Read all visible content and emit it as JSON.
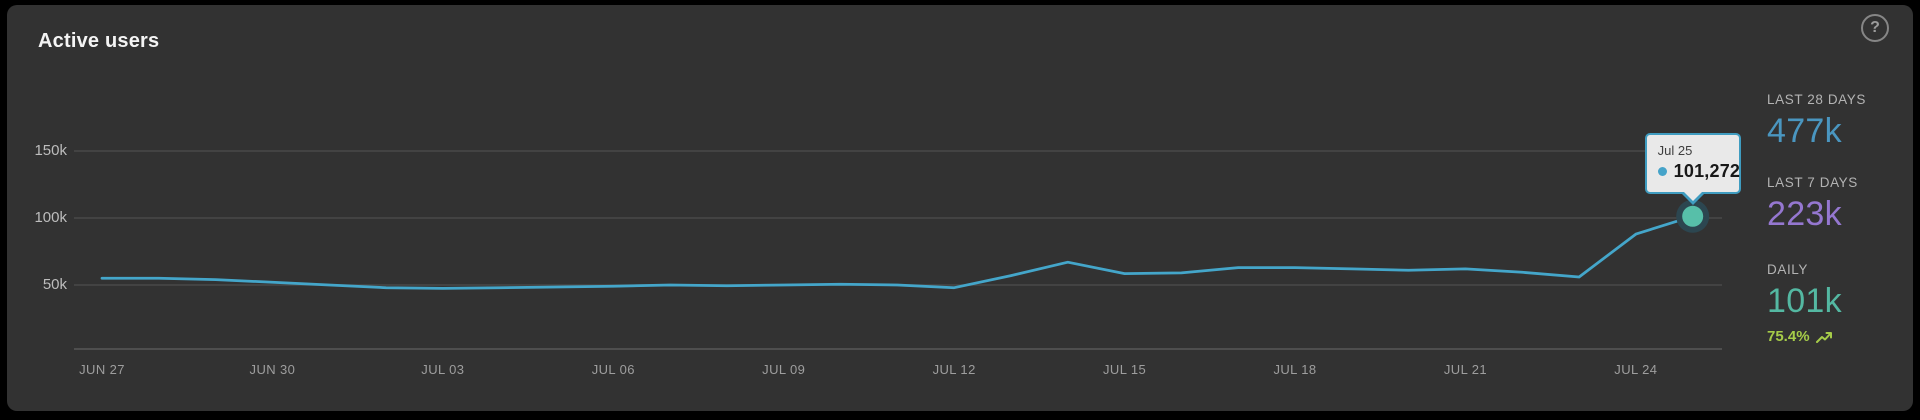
{
  "header": {
    "title": "Active users",
    "help_label": "?"
  },
  "chart_data": {
    "type": "line",
    "title": "Active users",
    "x": [
      "Jun 27",
      "Jun 28",
      "Jun 29",
      "Jun 30",
      "Jul 01",
      "Jul 02",
      "Jul 03",
      "Jul 04",
      "Jul 05",
      "Jul 06",
      "Jul 07",
      "Jul 08",
      "Jul 09",
      "Jul 10",
      "Jul 11",
      "Jul 12",
      "Jul 13",
      "Jul 14",
      "Jul 15",
      "Jul 16",
      "Jul 17",
      "Jul 18",
      "Jul 19",
      "Jul 20",
      "Jul 21",
      "Jul 22",
      "Jul 23",
      "Jul 24",
      "Jul 25"
    ],
    "values": [
      55000,
      55000,
      54000,
      52000,
      50000,
      48000,
      47500,
      48000,
      48500,
      49000,
      50000,
      49500,
      50000,
      50500,
      50000,
      48000,
      57000,
      67000,
      58500,
      59000,
      63000,
      63000,
      62000,
      61000,
      62000,
      59500,
      56000,
      88000,
      101272
    ],
    "ylim": [
      0,
      175000
    ],
    "yticks": [
      {
        "label": "50k",
        "value": 50000
      },
      {
        "label": "100k",
        "value": 100000
      },
      {
        "label": "150k",
        "value": 150000
      }
    ],
    "xtick_labels": [
      "JUN 27",
      "JUN 30",
      "JUL 03",
      "JUL 06",
      "JUL 09",
      "JUL 12",
      "JUL 15",
      "JUL 18",
      "JUL 21",
      "JUL 24"
    ],
    "xtick_every_n_days": 3,
    "grid": true,
    "legend": false,
    "line_color": "#44a6ca",
    "marker_color": "#57bfa9",
    "marker_halo_color": "#2c4650",
    "grid_color": "#494949",
    "axis_color": "#585858",
    "highlight_point": {
      "x": "Jul 25",
      "value": 101272
    }
  },
  "tooltip": {
    "date": "Jul 25",
    "value": "101,272",
    "accent_color": "#3f9cc0",
    "dot_color": "#45a3c9"
  },
  "stats": [
    {
      "id": "last-28-days",
      "label": "LAST 28 DAYS",
      "value": "477k",
      "color": "#4a96c0"
    },
    {
      "id": "last-7-days",
      "label": "LAST 7 DAYS",
      "value": "223k",
      "color": "#9577d0"
    },
    {
      "id": "daily",
      "label": "DAILY",
      "value": "101k",
      "color": "#54b8a2",
      "delta": "75.4%",
      "delta_color": "#a6cc49"
    }
  ]
}
